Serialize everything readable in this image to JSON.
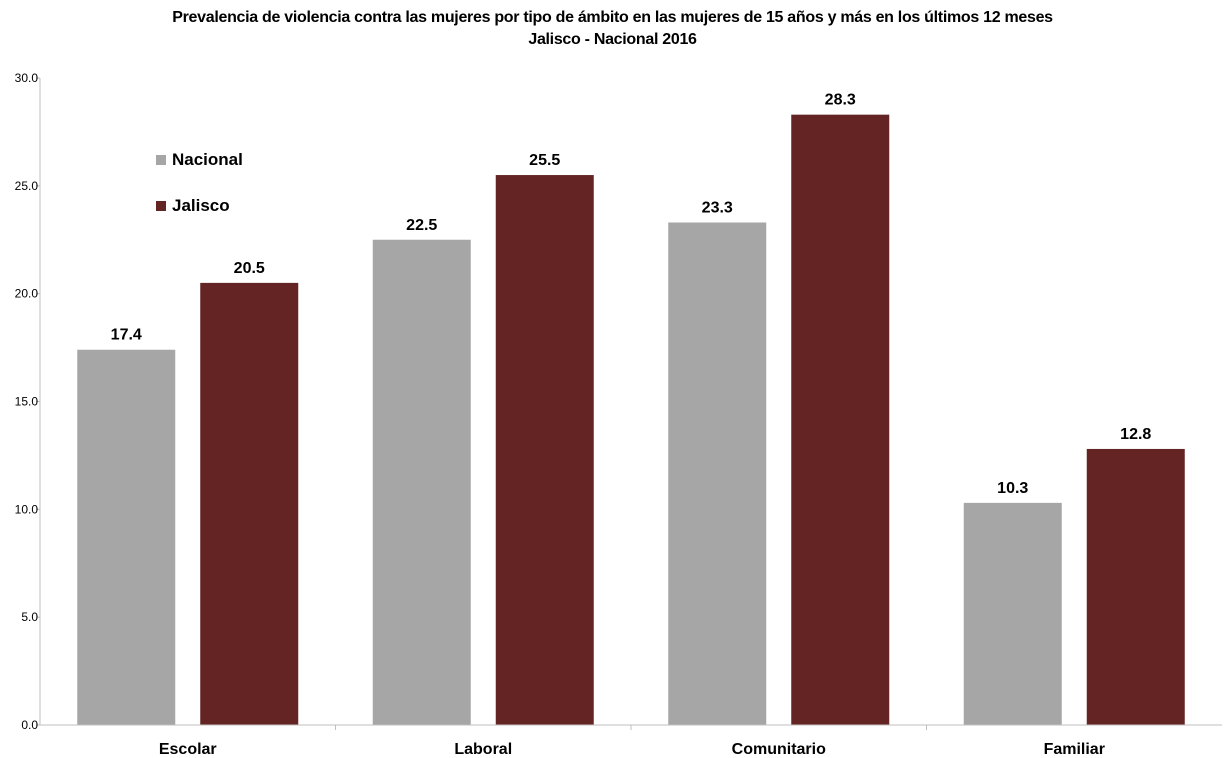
{
  "chart_data": {
    "type": "bar",
    "title": "Prevalencia de violencia contra las mujeres por tipo de ámbito en las mujeres de 15 años y más en los últimos 12 meses",
    "subtitle": "Jalisco - Nacional 2016",
    "categories": [
      "Escolar",
      "Laboral",
      "Comunitario",
      "Familiar"
    ],
    "series": [
      {
        "name": "Nacional",
        "color": "#a6a6a6",
        "values": [
          17.4,
          22.5,
          23.3,
          10.3
        ]
      },
      {
        "name": "Jalisco",
        "color": "#632423",
        "values": [
          20.5,
          25.5,
          28.3,
          12.8
        ]
      }
    ],
    "data_labels": {
      "Nacional": [
        "17.4",
        "22.5",
        "23.3",
        "10.3"
      ],
      "Jalisco": [
        "20.5",
        "25.5",
        "28.3",
        "12.8"
      ]
    },
    "yticks": [
      "0.0",
      "5.0",
      "10.0",
      "15.0",
      "20.0",
      "25.0",
      "30.0"
    ],
    "ylim": [
      0,
      30
    ],
    "xlabel": "",
    "ylabel": "",
    "grid": false,
    "legend_position": "top-left"
  }
}
